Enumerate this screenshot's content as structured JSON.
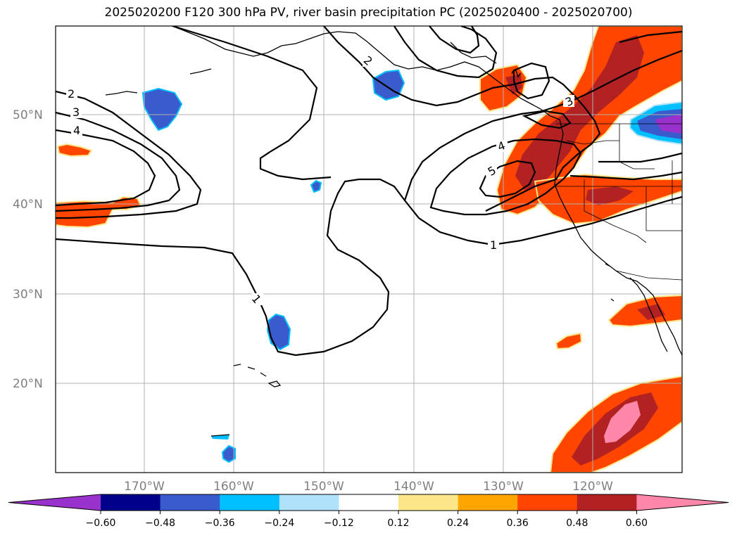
{
  "title": "2025020200 F120 300 hPa PV, river basin precipitation PC (2025020400 - 2025020700)",
  "map": {
    "lon_range": [
      -180,
      -110.3
    ],
    "lat_range": [
      10,
      60
    ],
    "lat_labels": [
      "50°N",
      "40°N",
      "30°N",
      "20°N"
    ],
    "lon_labels": [
      "170°W",
      "160°W",
      "150°W",
      "140°W",
      "130°W",
      "120°W"
    ],
    "contour_labels": [
      "2",
      "3",
      "4",
      "2",
      "5",
      "4",
      "3",
      "2",
      "1",
      "1"
    ]
  },
  "colorbar": {
    "tick_labels": [
      "−0.60",
      "−0.48",
      "−0.36",
      "−0.24",
      "−0.12",
      "0.12",
      "0.24",
      "0.36",
      "0.48",
      "0.60"
    ],
    "colors": [
      "#9932cc",
      "#00008b",
      "#3a5bcc",
      "#00bfff",
      "#aee1fa",
      "#ffffff",
      "#fde68a",
      "#ffa500",
      "#ff4500",
      "#b22222",
      "#ff88aa"
    ]
  }
}
